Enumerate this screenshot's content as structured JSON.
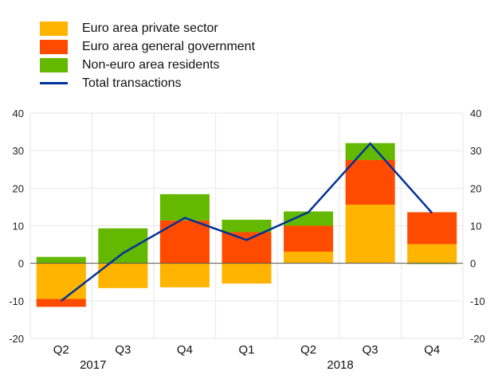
{
  "chart_data": {
    "type": "bar",
    "stacked": true,
    "title": "",
    "xlabel": "",
    "ylabel": "",
    "ylim": [
      -20,
      40
    ],
    "yticks": [
      40,
      30,
      20,
      10,
      0,
      -10,
      -20
    ],
    "yticks_right": [
      40,
      30,
      20,
      10,
      0,
      -10,
      -20
    ],
    "grid": true,
    "legend_position": "top-left",
    "categories": [
      "Q2",
      "Q3",
      "Q4",
      "Q1",
      "Q2",
      "Q3",
      "Q4"
    ],
    "year_labels": [
      {
        "label": "2017",
        "under_category_index": 0
      },
      {
        "label": "2018",
        "under_category_index": 4
      }
    ],
    "series": [
      {
        "name": "Euro area private sector",
        "color": "#ffb400",
        "kind": "bar",
        "values": [
          -9.5,
          -6.6,
          -6.4,
          -5.4,
          3.1,
          15.6,
          5.1
        ]
      },
      {
        "name": "Euro area general government",
        "color": "#ff4b00",
        "kind": "bar",
        "values": [
          -2.1,
          0.0,
          11.4,
          8.3,
          6.9,
          11.9,
          8.5
        ]
      },
      {
        "name": "Non-euro area residents",
        "color": "#65b800",
        "kind": "bar",
        "values": [
          1.7,
          9.3,
          7.0,
          3.3,
          3.8,
          4.5,
          -0.2
        ]
      },
      {
        "name": "Total transactions",
        "color": "#003299",
        "kind": "line",
        "values": [
          -10.0,
          2.7,
          12.1,
          6.2,
          13.6,
          31.9,
          13.4
        ]
      }
    ]
  }
}
